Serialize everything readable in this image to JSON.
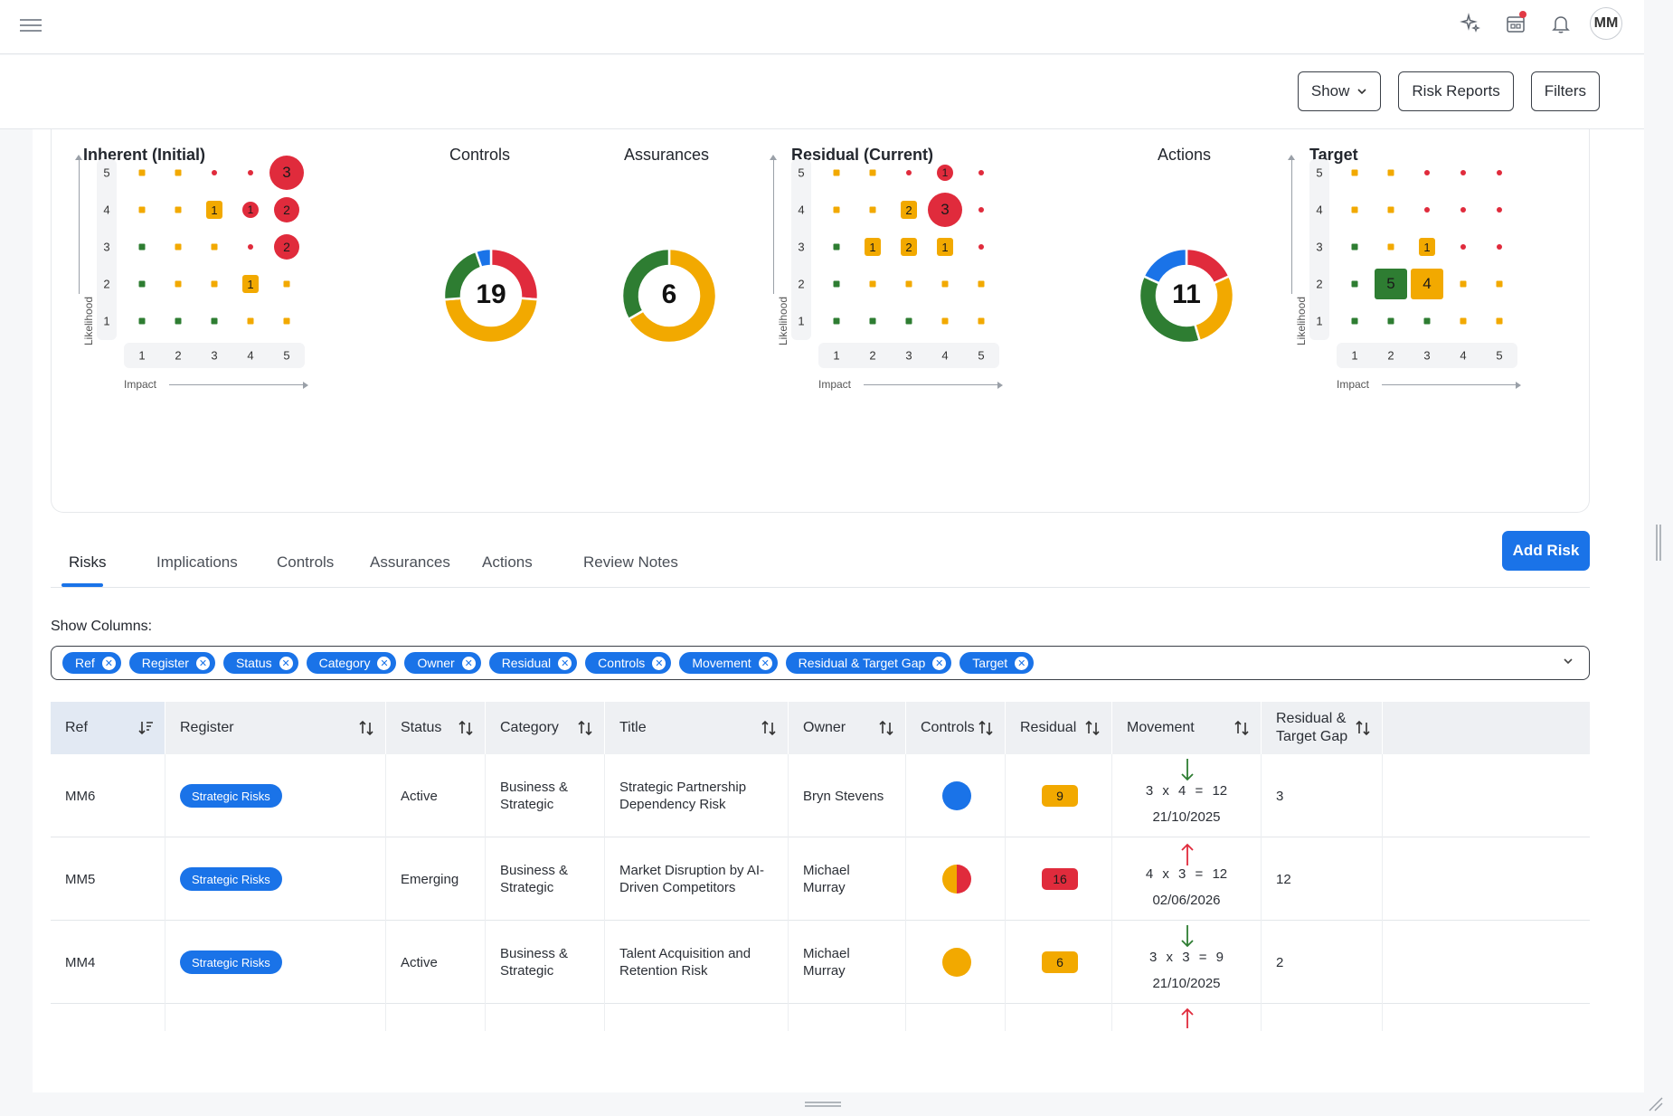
{
  "topbar": {
    "avatar_initials": "MM",
    "icons": [
      "menu-icon",
      "sparkle-icon",
      "calendar-icon",
      "bell-icon"
    ]
  },
  "toolbar": {
    "show_label": "Show",
    "risk_reports_label": "Risk Reports",
    "filters_label": "Filters"
  },
  "matrices": {
    "y_axis_label": "Likelihood",
    "x_axis_label": "Impact",
    "ticks": [
      "1",
      "2",
      "3",
      "4",
      "5"
    ],
    "inherent": {
      "title": "Inherent (Initial)",
      "cells": [
        {
          "l": 5,
          "i": 5,
          "count": "3",
          "size": "big",
          "color": "#e02b3c"
        },
        {
          "l": 4,
          "i": 3,
          "count": "1",
          "size": "sq",
          "color": "#f2a900"
        },
        {
          "l": 4,
          "i": 4,
          "count": "1",
          "size": "dot",
          "color": "#e02b3c"
        },
        {
          "l": 4,
          "i": 5,
          "count": "2",
          "size": "med",
          "color": "#e02b3c"
        },
        {
          "l": 3,
          "i": 5,
          "count": "2",
          "size": "med",
          "color": "#e02b3c"
        },
        {
          "l": 2,
          "i": 4,
          "count": "1",
          "size": "sq",
          "color": "#f2a900"
        }
      ]
    },
    "controls": {
      "title": "Controls",
      "total": "19",
      "segments": [
        {
          "color": "#e02b3c",
          "value": 5
        },
        {
          "color": "#f2a900",
          "value": 9
        },
        {
          "color": "#2e7d32",
          "value": 4
        },
        {
          "color": "#1a73e8",
          "value": 1
        }
      ]
    },
    "assurances": {
      "title": "Assurances",
      "total": "6",
      "segments": [
        {
          "color": "#f2a900",
          "value": 4
        },
        {
          "color": "#2e7d32",
          "value": 2
        }
      ]
    },
    "residual": {
      "title": "Residual (Current)",
      "cells": [
        {
          "l": 5,
          "i": 4,
          "count": "1",
          "size": "dot",
          "color": "#e02b3c"
        },
        {
          "l": 4,
          "i": 3,
          "count": "2",
          "size": "sq",
          "color": "#f2a900"
        },
        {
          "l": 4,
          "i": 4,
          "count": "3",
          "size": "big",
          "color": "#e02b3c"
        },
        {
          "l": 3,
          "i": 2,
          "count": "1",
          "size": "sq",
          "color": "#f2a900"
        },
        {
          "l": 3,
          "i": 3,
          "count": "2",
          "size": "sq",
          "color": "#f2a900"
        },
        {
          "l": 3,
          "i": 4,
          "count": "1",
          "size": "sq",
          "color": "#f2a900"
        }
      ]
    },
    "actions": {
      "title": "Actions",
      "total": "11",
      "segments": [
        {
          "color": "#e02b3c",
          "value": 2
        },
        {
          "color": "#f2a900",
          "value": 3
        },
        {
          "color": "#2e7d32",
          "value": 4
        },
        {
          "color": "#1a73e8",
          "value": 2
        }
      ]
    },
    "target": {
      "title": "Target",
      "cells": [
        {
          "l": 3,
          "i": 3,
          "count": "1",
          "size": "sq",
          "color": "#f2a900"
        },
        {
          "l": 2,
          "i": 2,
          "count": "5",
          "size": "bigsq",
          "color": "#2e7d32"
        },
        {
          "l": 2,
          "i": 3,
          "count": "4",
          "size": "bigsq",
          "color": "#f2a900"
        }
      ]
    }
  },
  "tabs": [
    {
      "label": "Risks",
      "active": true
    },
    {
      "label": "Implications"
    },
    {
      "label": "Controls"
    },
    {
      "label": "Assurances"
    },
    {
      "label": "Actions"
    },
    {
      "label": "Review Notes"
    }
  ],
  "add_risk_label": "Add Risk",
  "show_columns": {
    "label": "Show Columns:",
    "chips": [
      "Ref",
      "Register",
      "Status",
      "Category",
      "Owner",
      "Residual",
      "Controls",
      "Movement",
      "Residual & Target Gap",
      "Target"
    ]
  },
  "table": {
    "headers": [
      "Ref",
      "Register",
      "Status",
      "Category",
      "Title",
      "Owner",
      "Controls",
      "Residual",
      "Movement",
      "Residual & Target Gap"
    ],
    "rows": [
      {
        "ref": "MM6",
        "register": "Strategic Risks",
        "status": "Active",
        "category": "Business & Strategic",
        "title": "Strategic Partnership Dependency Risk",
        "owner": "Bryn Stevens",
        "controls": "blue",
        "residual": "9",
        "residual_color": "#f2a900",
        "arrow": "down",
        "equation": "3 x 4 = 12",
        "date": "21/10/2025",
        "gap": "3"
      },
      {
        "ref": "MM5",
        "register": "Strategic Risks",
        "status": "Emerging",
        "category": "Business & Strategic",
        "title": "Market Disruption by AI-Driven Competitors",
        "owner": "Michael Murray",
        "controls": "split",
        "residual": "16",
        "residual_color": "#e02b3c",
        "arrow": "up",
        "equation": "4 x 3 = 12",
        "date": "02/06/2026",
        "gap": "12"
      },
      {
        "ref": "MM4",
        "register": "Strategic Risks",
        "status": "Active",
        "category": "Business & Strategic",
        "title": "Talent Acquisition and Retention Risk",
        "owner": "Michael Murray",
        "controls": "amber",
        "residual": "6",
        "residual_color": "#f2a900",
        "arrow": "down",
        "equation": "3 x 3 = 9",
        "date": "21/10/2025",
        "gap": "2"
      }
    ]
  }
}
